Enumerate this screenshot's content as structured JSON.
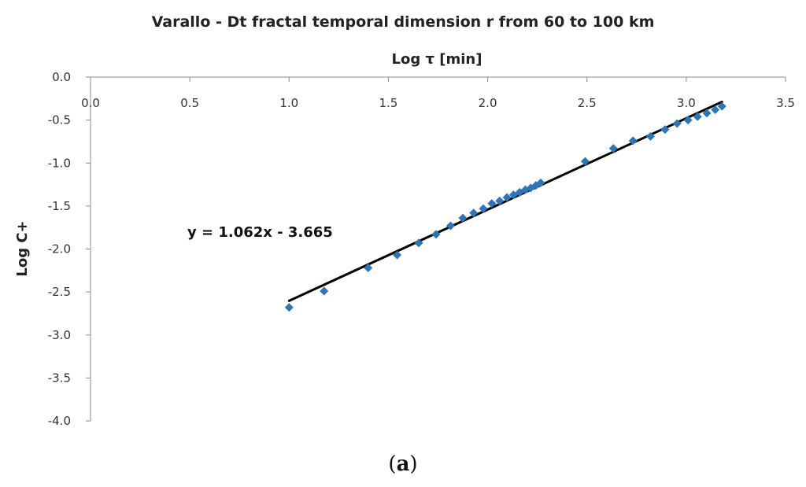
{
  "chart_data": {
    "type": "scatter",
    "title": "Varallo - Dt fractal temporal dimension r from 60 to 100 km",
    "xlabel": "Log τ [min]",
    "ylabel": "Log C+",
    "xlim": [
      0.0,
      3.5
    ],
    "ylim": [
      -4.0,
      0.0
    ],
    "x_ticks": [
      "0.0",
      "0.5",
      "1.0",
      "1.5",
      "2.0",
      "2.5",
      "3.0",
      "3.5"
    ],
    "y_ticks": [
      "0.0",
      "-0.5",
      "-1.0",
      "-1.5",
      "-2.0",
      "-2.5",
      "-3.0",
      "-3.5",
      "-4.0"
    ],
    "x_axis_position": "top",
    "grid": false,
    "legend": "none",
    "marker_color": "#2E75B6",
    "line_color": "#000000",
    "series": [
      {
        "marker": "diamond",
        "x": [
          1.0,
          1.176,
          1.398,
          1.544,
          1.653,
          1.74,
          1.813,
          1.875,
          1.929,
          1.978,
          2.021,
          2.06,
          2.097,
          2.13,
          2.161,
          2.19,
          2.217,
          2.243,
          2.267,
          2.491,
          2.633,
          2.732,
          2.82,
          2.893,
          2.954,
          3.009,
          3.057,
          3.104,
          3.146,
          3.18
        ],
        "y": [
          -2.68,
          -2.49,
          -2.22,
          -2.07,
          -1.93,
          -1.83,
          -1.73,
          -1.64,
          -1.58,
          -1.53,
          -1.47,
          -1.44,
          -1.4,
          -1.37,
          -1.34,
          -1.31,
          -1.29,
          -1.26,
          -1.23,
          -0.98,
          -0.83,
          -0.74,
          -0.69,
          -0.61,
          -0.54,
          -0.5,
          -0.46,
          -0.42,
          -0.38,
          -0.34
        ]
      }
    ],
    "trendline": {
      "slope": 1.062,
      "intercept": -3.665,
      "x_range": [
        1.0,
        3.18
      ],
      "equation_label": "y = 1.062x - 3.665"
    }
  },
  "caption": {
    "open": "(",
    "letter": "a",
    "close": ")"
  }
}
